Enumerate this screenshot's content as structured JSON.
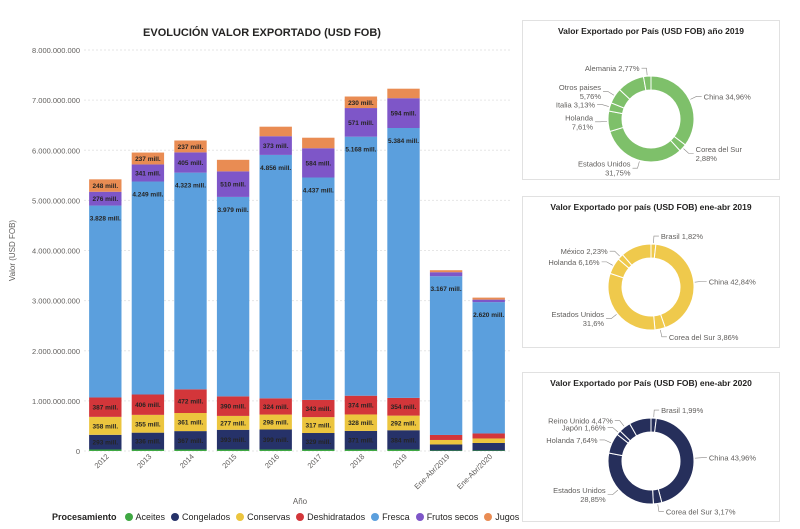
{
  "chart_data": [
    {
      "type": "bar",
      "stacked": true,
      "title": "EVOLUCIÓN VALOR EXPORTADO (USD FOB)",
      "xlabel": "Año",
      "ylabel": "Valor (USD FOB)",
      "ylim": [
        0,
        8000000000
      ],
      "yticks": [
        "0",
        "1.000.000.000",
        "2.000.000.000",
        "3.000.000.000",
        "4.000.000.000",
        "5.000.000.000",
        "6.000.000.000",
        "7.000.000.000",
        "8.000.000.000"
      ],
      "grid": true,
      "legend_title": "Procesamiento",
      "legend_position": "bottom",
      "categories": [
        "2012",
        "2013",
        "2014",
        "2015",
        "2016",
        "2017",
        "2018",
        "2019",
        "Ene-Abr/2019",
        "Ene-Abr/2020"
      ],
      "series": [
        {
          "name": "Aceites",
          "color": "#3fa843",
          "values": [
            30000000,
            30000000,
            30000000,
            30000000,
            30000000,
            30000000,
            30000000,
            30000000,
            10000000,
            10000000
          ],
          "labels": [
            "",
            "",
            "",
            "",
            "",
            "",
            "",
            "",
            "",
            ""
          ]
        },
        {
          "name": "Congelados",
          "color": "#263269",
          "values": [
            293000000,
            336000000,
            367000000,
            393000000,
            399000000,
            329000000,
            371000000,
            384000000,
            120000000,
            150000000
          ],
          "labels": [
            "293 mill.",
            "336 mill.",
            "367 mill.",
            "393 mill.",
            "399 mill.",
            "329 mill.",
            "371 mill.",
            "384 mill.",
            "",
            ""
          ]
        },
        {
          "name": "Conservas",
          "color": "#ecc53e",
          "values": [
            358000000,
            355000000,
            361000000,
            277000000,
            298000000,
            317000000,
            328000000,
            292000000,
            90000000,
            90000000
          ],
          "labels": [
            "358 mill.",
            "355 mill.",
            "361 mill.",
            "277 mill.",
            "298 mill.",
            "317 mill.",
            "328 mill.",
            "292 mill.",
            "",
            ""
          ]
        },
        {
          "name": "Deshidratados",
          "color": "#d3363a",
          "values": [
            387000000,
            406000000,
            472000000,
            390000000,
            324000000,
            343000000,
            374000000,
            354000000,
            100000000,
            100000000
          ],
          "labels": [
            "387 mill.",
            "406 mill.",
            "472 mill.",
            "390 mill.",
            "324 mill.",
            "343 mill.",
            "374 mill.",
            "354 mill.",
            "",
            ""
          ]
        },
        {
          "name": "Fresca",
          "color": "#5b9fdd",
          "values": [
            3828000000,
            4249000000,
            4323000000,
            3979000000,
            4856000000,
            4437000000,
            5168000000,
            5384000000,
            3167000000,
            2620000000
          ],
          "labels": [
            "3.828 mill.",
            "4.249 mill.",
            "4.323 mill.",
            "3.979 mill.",
            "4.856 mill.",
            "4.437 mill.",
            "5.168 mill.",
            "5.384 mill.",
            "3.167 mill.",
            "2.620 mill."
          ]
        },
        {
          "name": "Frutos secos",
          "color": "#7e56c8",
          "values": [
            276000000,
            341000000,
            405000000,
            510000000,
            373000000,
            584000000,
            571000000,
            594000000,
            80000000,
            50000000
          ],
          "labels": [
            "276 mill.",
            "341 mill.",
            "405 mill.",
            "510 mill.",
            "373 mill.",
            "584 mill.",
            "571 mill.",
            "594 mill.",
            "",
            ""
          ]
        },
        {
          "name": "Jugos",
          "color": "#e98c53",
          "values": [
            248000000,
            237000000,
            237000000,
            230000000,
            190000000,
            210000000,
            230000000,
            190000000,
            40000000,
            40000000
          ],
          "labels": [
            "248 mill.",
            "237 mill.",
            "237 mill.",
            "",
            "",
            "",
            "230 mill.",
            "",
            "",
            ""
          ]
        }
      ]
    },
    {
      "type": "pie",
      "donut": true,
      "title": "Valor Exportado por País (USD FOB) año 2019",
      "color": "#7ec06a",
      "slices": [
        {
          "name": "China",
          "value": 34.96,
          "label": "China 34,96%"
        },
        {
          "name": "Corea del Sur",
          "value": 2.88,
          "label": "Corea del Sur\n2,88%"
        },
        {
          "name": "Estados Unidos",
          "value": 31.75,
          "label": "Estados Unidos\n31,75%"
        },
        {
          "name": "Holanda",
          "value": 7.61,
          "label": "Holanda\n7,61%"
        },
        {
          "name": "Italia",
          "value": 3.13,
          "label": "Italia 3,13%"
        },
        {
          "name": "Otros paises",
          "value": 5.76,
          "label": "Otros paises\n5,76%"
        },
        {
          "name": "",
          "value": 10.14,
          "label": ""
        },
        {
          "name": "Alemania",
          "value": 2.77,
          "label": "Alemania 2,77%"
        }
      ]
    },
    {
      "type": "pie",
      "donut": true,
      "title": "Valor Exportado por país (USD FOB) ene-abr 2019",
      "color": "#efc94c",
      "slices": [
        {
          "name": "Brasil",
          "value": 1.82,
          "label": "Brasil 1,82%"
        },
        {
          "name": "China",
          "value": 42.84,
          "label": "China 42,84%"
        },
        {
          "name": "Corea del Sur",
          "value": 3.86,
          "label": "Corea del Sur 3,86%"
        },
        {
          "name": "Estados Unidos",
          "value": 31.6,
          "label": "Estados Unidos\n31,6%"
        },
        {
          "name": "Holanda",
          "value": 6.16,
          "label": "Holanda 6,16%"
        },
        {
          "name": "México",
          "value": 2.23,
          "label": "México 2,23%"
        },
        {
          "name": "",
          "value": 11.49,
          "label": ""
        }
      ]
    },
    {
      "type": "pie",
      "donut": true,
      "title": "Valor Exportado por País (USD FOB) ene-abr 2020",
      "color": "#262f5b",
      "slices": [
        {
          "name": "Brasil",
          "value": 1.99,
          "label": "Brasil 1,99%"
        },
        {
          "name": "China",
          "value": 43.96,
          "label": "China 43,96%"
        },
        {
          "name": "Corea del Sur",
          "value": 3.17,
          "label": "Corea del Sur 3,17%"
        },
        {
          "name": "Estados Unidos",
          "value": 28.85,
          "label": "Estados Unidos\n28,85%"
        },
        {
          "name": "Holanda",
          "value": 7.64,
          "label": "Holanda 7,64%"
        },
        {
          "name": "Japón",
          "value": 1.66,
          "label": "Japón 1,66%"
        },
        {
          "name": "Reino Unido",
          "value": 4.47,
          "label": "Reino Unido 4,47%"
        },
        {
          "name": "",
          "value": 8.26,
          "label": ""
        }
      ]
    }
  ]
}
